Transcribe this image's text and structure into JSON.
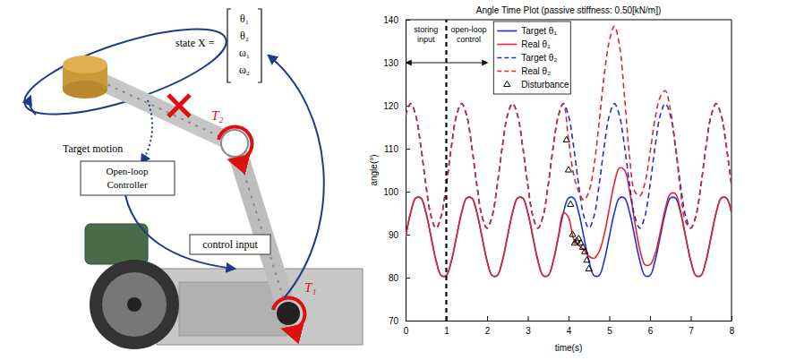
{
  "diagram": {
    "state_label": "state X =",
    "state_vector": [
      "θ₁",
      "θ₂",
      "ω₁",
      "ω₂"
    ],
    "target_motion": "Target motion",
    "controller": [
      "Open-loop",
      "Controller"
    ],
    "control_input": "control input",
    "torque_labels": [
      "T₁",
      "T₂"
    ]
  },
  "chart_data": {
    "type": "line",
    "title": "Angle Time Plot (passive stiffness: 0.50[kN/m])",
    "x_label": "time(s)",
    "y_label": "angle(°)",
    "x": [
      0,
      0.125,
      0.25,
      0.375,
      0.5,
      0.625,
      0.75,
      0.875,
      1,
      1.125,
      1.25,
      1.375,
      1.5,
      1.625,
      1.75,
      1.875,
      2,
      2.125,
      2.25,
      2.375,
      2.5,
      2.625,
      2.75,
      2.875,
      3,
      3.125,
      3.25,
      3.375,
      3.5,
      3.625,
      3.75,
      3.875,
      4,
      4.125,
      4.25,
      4.375,
      4.5,
      4.625,
      4.75,
      4.875,
      5,
      5.125,
      5.25,
      5.375,
      5.5,
      5.625,
      5.75,
      5.875,
      6,
      6.125,
      6.25,
      6.375,
      6.5,
      6.625,
      6.75,
      6.875,
      7,
      7.125,
      7.25,
      7.375,
      7.5,
      7.625,
      7.75,
      7.875,
      8
    ],
    "xlim": [
      0,
      8
    ],
    "xticks": [
      0,
      1,
      2,
      3,
      4,
      5,
      6,
      7,
      8
    ],
    "ylim": [
      70,
      140
    ],
    "yticks": [
      70,
      80,
      90,
      100,
      110,
      120,
      130,
      140
    ],
    "grid": false,
    "legend": "upper center",
    "series": [
      {
        "name": "Target θ₁",
        "color": "#1f2fd8",
        "line_style": "solid",
        "values": [
          89.5,
          95.1,
          98.5,
          98.5,
          95.1,
          89.5,
          83.9,
          80.5,
          80.5,
          83.9,
          89.5,
          95.1,
          98.5,
          98.5,
          95.1,
          89.5,
          83.9,
          80.5,
          80.5,
          83.9,
          89.5,
          95.1,
          98.5,
          98.5,
          95.1,
          89.5,
          83.9,
          80.5,
          80.5,
          83.9,
          89.5,
          95.1,
          98.5,
          98.5,
          95.1,
          89.5,
          83.9,
          80.5,
          80.5,
          83.9,
          89.5,
          95.1,
          98.5,
          98.5,
          95.1,
          89.5,
          83.9,
          80.5,
          80.5,
          83.9,
          89.5,
          95.1,
          98.5,
          98.5,
          95.1,
          89.5,
          83.9,
          80.5,
          80.5,
          83.9,
          89.5,
          95.1,
          98.5,
          98.5,
          95.1
        ]
      },
      {
        "name": "Real θ₁",
        "color": "#e0262b",
        "line_style": "solid",
        "values": [
          89.5,
          95.1,
          98.5,
          98.5,
          95.1,
          89.5,
          83.9,
          80.5,
          80.5,
          83.9,
          89.5,
          95.1,
          98.5,
          98.5,
          95.1,
          89.5,
          83.9,
          80.5,
          80.5,
          83.9,
          89.5,
          95.1,
          98.5,
          98.5,
          95.1,
          89.5,
          83.9,
          80.5,
          80.5,
          83.9,
          89.5,
          95.1,
          94,
          89,
          87.5,
          86.5,
          85,
          84.5,
          86,
          90,
          96,
          102,
          105.5,
          105,
          100,
          93,
          86.5,
          83,
          83,
          85.5,
          90.5,
          96,
          99.5,
          99.5,
          95.5,
          89.5,
          83.9,
          80.5,
          80.5,
          83.9,
          89.5,
          95.1,
          98.5,
          98.5,
          95.1
        ]
      },
      {
        "name": "Target θ₂",
        "color": "#1f2fd8",
        "line_style": "dashed",
        "values": [
          117.7,
          120.5,
          117.7,
          110.5,
          101.5,
          94.3,
          91.5,
          94.3,
          101.5,
          110.5,
          117.7,
          120.5,
          117.7,
          110.5,
          101.5,
          94.3,
          91.5,
          94.3,
          101.5,
          110.5,
          117.7,
          120.5,
          117.7,
          110.5,
          101.5,
          94.3,
          91.5,
          94.3,
          101.5,
          110.5,
          117.7,
          120.5,
          117.7,
          110.5,
          101.5,
          94.3,
          91.5,
          94.3,
          101.5,
          110.5,
          117.7,
          120.5,
          117.7,
          110.5,
          101.5,
          94.3,
          91.5,
          94.3,
          101.5,
          110.5,
          117.7,
          120.5,
          117.7,
          110.5,
          101.5,
          94.3,
          91.5,
          94.3,
          101.5,
          110.5,
          117.7,
          120.5,
          117.7,
          110.5,
          101.5
        ]
      },
      {
        "name": "Real θ₂",
        "color": "#e0262b",
        "line_style": "dashed",
        "values": [
          117.7,
          120.5,
          117.7,
          110.5,
          101.5,
          94.3,
          91.5,
          94.3,
          101.5,
          110.5,
          117.7,
          120.5,
          117.7,
          110.5,
          101.5,
          94.3,
          91.5,
          94.3,
          101.5,
          110.5,
          117.7,
          120.5,
          117.7,
          110.5,
          101.5,
          94.3,
          91.5,
          94.3,
          101.5,
          110.5,
          117.7,
          120.5,
          112,
          104,
          100,
          98,
          100,
          106,
          116,
          127,
          135,
          138.5,
          134,
          122,
          108,
          100,
          99,
          102,
          109,
          117,
          122,
          123.5,
          119,
          110.5,
          100,
          93,
          91.5,
          94.3,
          101.5,
          110.5,
          117.7,
          120.5,
          117.7,
          110.5,
          101.5
        ]
      },
      {
        "name": "Disturbance",
        "type": "scatter",
        "color": "#000000",
        "marker": "triangle",
        "x": [
          3.95,
          4.0,
          4.05,
          4.1,
          4.15,
          4.2,
          4.25,
          4.3,
          4.35,
          4.4,
          4.45,
          4.5
        ],
        "values": [
          112,
          105,
          97,
          90,
          88,
          88.5,
          89,
          88,
          87,
          86,
          84,
          82
        ]
      }
    ],
    "vline": {
      "x": 1
    },
    "arrow": {
      "x": [
        0,
        2
      ],
      "y": 130
    },
    "annotations": [
      {
        "text": [
          "storing",
          "input"
        ],
        "x": 0.5,
        "y": 137
      },
      {
        "text": [
          "open-loop",
          "control"
        ],
        "x": 1.55,
        "y": 137
      }
    ]
  }
}
